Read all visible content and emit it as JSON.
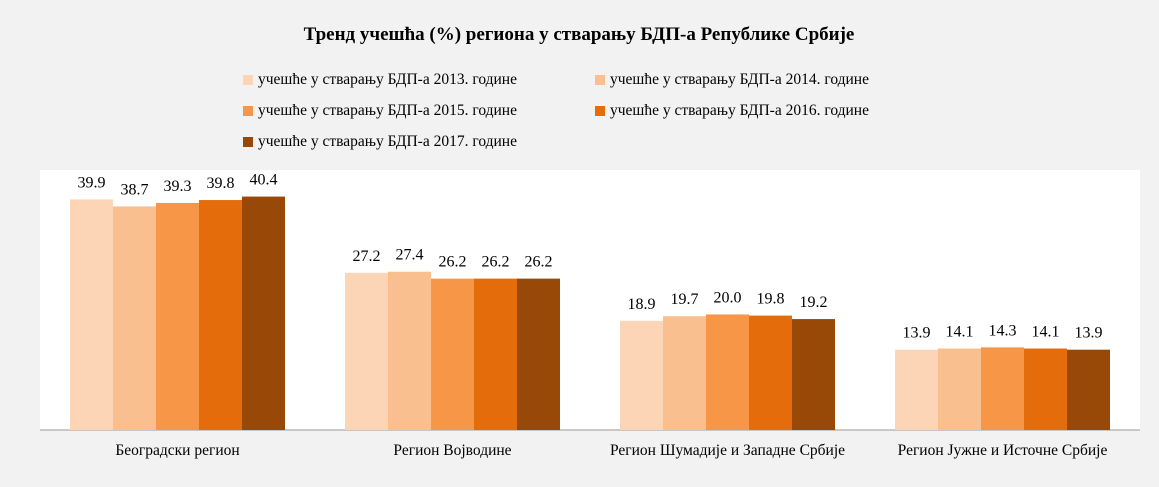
{
  "chart_data": {
    "type": "bar",
    "title": "Тренд учешћа (%) региона у стварању БДП-а Републике Србије",
    "categories": [
      "Београдски регион",
      "Регион Војводине",
      "Регион Шумадије и Западне Србије",
      "Регион Јужне и Источне Србије"
    ],
    "series": [
      {
        "name": "учешће у стварању БДП-а 2013. године",
        "color": "#fbd5b5",
        "values": [
          39.9,
          27.2,
          18.9,
          13.9
        ],
        "value_labels": [
          "39.9",
          "27.2",
          "18.9",
          "13.9"
        ]
      },
      {
        "name": "учешће у стварању БДП-а 2014. године",
        "color": "#f9bf8f",
        "values": [
          38.7,
          27.4,
          19.7,
          14.1
        ],
        "value_labels": [
          "38.7",
          "27.4",
          "19.7",
          "14.1"
        ]
      },
      {
        "name": "учешће у стварању БДП-а 2015. године",
        "color": "#f79646",
        "values": [
          39.3,
          26.2,
          20.0,
          14.3
        ],
        "value_labels": [
          "39.3",
          "26.2",
          "20.0",
          "14.3"
        ]
      },
      {
        "name": "учешће у стварању БДП-а 2016. године",
        "color": "#e46c0a",
        "values": [
          39.8,
          26.2,
          19.8,
          14.1
        ],
        "value_labels": [
          "39.8",
          "26.2",
          "19.8",
          "14.1"
        ]
      },
      {
        "name": "учешће у стварању БДП-а 2017. године",
        "color": "#984807",
        "values": [
          40.4,
          26.2,
          19.2,
          13.9
        ],
        "value_labels": [
          "40.4",
          "26.2",
          "19.2",
          "13.9"
        ]
      }
    ],
    "ylim": [
      0,
      45
    ],
    "legend": "top"
  }
}
